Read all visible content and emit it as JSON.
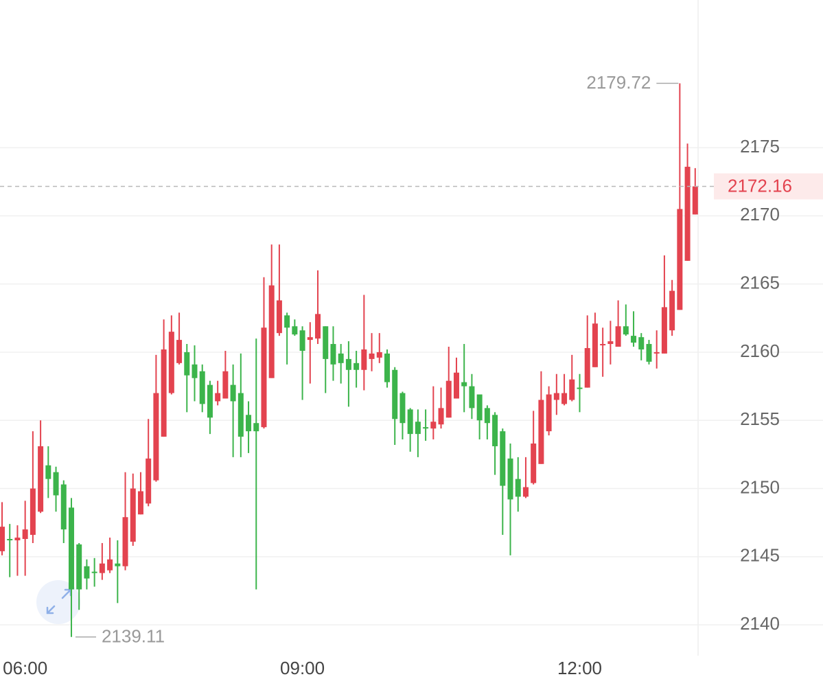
{
  "chart_data": {
    "type": "candlestick",
    "categories": [
      null,
      null,
      null,
      "06:00",
      null,
      null,
      null,
      null,
      null,
      null,
      null,
      null,
      null,
      null,
      null,
      null,
      null,
      null,
      null,
      null,
      null,
      null,
      null,
      null,
      null,
      null,
      null,
      null,
      null,
      null,
      null,
      null,
      null,
      null,
      null,
      null,
      null,
      null,
      null,
      "09:00",
      null,
      null,
      null,
      null,
      null,
      null,
      null,
      null,
      null,
      null,
      null,
      null,
      null,
      null,
      null,
      null,
      null,
      null,
      null,
      null,
      null,
      null,
      null,
      null,
      null,
      null,
      null,
      null,
      null,
      null,
      null,
      null,
      null,
      null,
      null,
      "12:00",
      null,
      null,
      null,
      null,
      null,
      null,
      null,
      null,
      null,
      null,
      null,
      null,
      null,
      null,
      null
    ],
    "open": [
      2145.4,
      2146.3,
      2146.2,
      2146.3,
      2146.6,
      2148.3,
      2151.7,
      2151.2,
      2150.3,
      2148.6,
      2145.9,
      2144.3,
      2143.9,
      2143.8,
      2144.0,
      2144.5,
      2144.3,
      2146.1,
      2148.1,
      2148.9,
      2150.6,
      2153.8,
      2157.0,
      2159.2,
      2160.0,
      2159.1,
      2158.6,
      2157.6,
      2156.4,
      2156.6,
      2157.6,
      2157.0,
      2155.4,
      2154.8,
      2154.5,
      2158.1,
      2161.4,
      2162.7,
      2161.9,
      2161.6,
      2160.9,
      2161.0,
      2161.9,
      2160.6,
      2159.9,
      2159.5,
      2159.2,
      2158.7,
      2159.5,
      2159.6,
      2159.9,
      2158.7,
      2157.0,
      2155.8,
      2154.9,
      2154.5,
      2154.4,
      2154.7,
      2155.2,
      2156.6,
      2157.8,
      2157.5,
      2156.9,
      2155.9,
      2155.4,
      2154.2,
      2152.2,
      2150.7,
      2149.4,
      2150.4,
      2151.8,
      2154.2,
      2156.5,
      2156.2,
      2156.5,
      2157.4,
      2157.4,
      2158.9,
      2160.5,
      2160.6,
      2160.4,
      2161.9,
      2161.2,
      2161.1,
      2160.6,
      2159.9,
      2159.9,
      2161.6,
      2163.1,
      2166.7,
      2170.1
    ],
    "high": [
      2149.0,
      2147.4,
      2147.3,
      2149.1,
      2154.2,
      2155.0,
      2153.1,
      2151.6,
      2150.6,
      2149.3,
      2146.0,
      2144.8,
      2144.9,
      2146.0,
      2146.4,
      2146.2,
      2151.2,
      2151.1,
      2151.2,
      2155.1,
      2159.8,
      2162.4,
      2162.7,
      2162.9,
      2160.6,
      2160.5,
      2159.1,
      2157.9,
      2157.9,
      2160.1,
      2159.1,
      2159.9,
      2156.4,
      2161.0,
      2165.5,
      2167.9,
      2167.9,
      2162.9,
      2162.4,
      2161.9,
      2162.2,
      2166.0,
      2161.9,
      2161.9,
      2160.6,
      2160.8,
      2160.1,
      2164.2,
      2161.4,
      2161.4,
      2160.2,
      2158.9,
      2157.1,
      2155.9,
      2155.8,
      2155.8,
      2157.5,
      2157.4,
      2160.4,
      2159.6,
      2160.6,
      2158.4,
      2156.9,
      2156.1,
      2155.6,
      2154.4,
      2153.3,
      2152.3,
      2152.3,
      2155.7,
      2158.6,
      2157.5,
      2158.4,
      2158.4,
      2159.8,
      2158.4,
      2162.7,
      2162.9,
      2161.8,
      2162.3,
      2163.8,
      2163.5,
      2163.0,
      2161.4,
      2160.9,
      2161.6,
      2167.1,
      2165.3,
      2179.72,
      2175.3,
      2173.5
    ],
    "low": [
      2145.1,
      2143.5,
      2143.6,
      2143.6,
      2146.0,
      2148.2,
      2149.3,
      2148.3,
      2146.0,
      2139.11,
      2141.1,
      2142.6,
      2142.8,
      2143.3,
      2143.8,
      2141.6,
      2144.0,
      2145.8,
      2148.1,
      2148.7,
      2150.5,
      2153.8,
      2156.9,
      2159.1,
      2155.6,
      2156.4,
      2155.6,
      2154.0,
      2156.1,
      2156.6,
      2152.3,
      2152.3,
      2152.6,
      2142.6,
      2154.4,
      2158.1,
      2161.2,
      2159.1,
      2161.2,
      2156.5,
      2157.7,
      2160.6,
      2157.0,
      2157.9,
      2157.7,
      2156.0,
      2157.4,
      2157.2,
      2158.6,
      2159.2,
      2157.4,
      2153.2,
      2153.6,
      2152.7,
      2152.3,
      2153.5,
      2153.6,
      2154.4,
      2155.2,
      2156.6,
      2155.6,
      2155.1,
      2153.6,
      2153.6,
      2151.0,
      2146.6,
      2145.1,
      2148.3,
      2149.3,
      2150.3,
      2151.8,
      2153.9,
      2155.4,
      2156.1,
      2156.4,
      2155.6,
      2157.4,
      2158.9,
      2158.2,
      2159.1,
      2160.4,
      2161.2,
      2160.4,
      2159.4,
      2159.1,
      2158.8,
      2159.9,
      2161.2,
      2163.1,
      2166.7,
      2170.1
    ],
    "close": [
      2147.2,
      2146.2,
      2146.4,
      2147.0,
      2150.0,
      2153.1,
      2150.7,
      2149.5,
      2147.0,
      2142.6,
      2142.6,
      2143.4,
      2143.8,
      2144.5,
      2144.8,
      2144.3,
      2147.9,
      2150.0,
      2149.8,
      2152.2,
      2157.0,
      2160.2,
      2161.5,
      2160.9,
      2158.3,
      2158.1,
      2156.2,
      2155.2,
      2157.0,
      2158.6,
      2156.4,
      2153.8,
      2154.2,
      2154.2,
      2161.8,
      2164.9,
      2163.8,
      2161.8,
      2161.3,
      2160.1,
      2161.1,
      2162.8,
      2159.5,
      2159.1,
      2159.2,
      2158.7,
      2158.7,
      2160.2,
      2159.9,
      2160.0,
      2157.8,
      2155.1,
      2154.8,
      2154.0,
      2154.0,
      2154.4,
      2154.9,
      2155.9,
      2157.9,
      2158.5,
      2157.5,
      2155.9,
      2155.0,
      2154.8,
      2153.1,
      2150.2,
      2149.2,
      2149.4,
      2150.1,
      2153.3,
      2156.5,
      2156.9,
      2157.0,
      2157.0,
      2158.0,
      2157.3,
      2160.3,
      2162.1,
      2160.6,
      2160.8,
      2161.9,
      2161.3,
      2160.7,
      2160.2,
      2159.3,
      2160.0,
      2163.3,
      2164.5,
      2170.5,
      2173.6,
      2172.16
    ],
    "up_color": "#e3434f",
    "down_color": "#3cb44b",
    "ylim": [
      2137.74,
      2185.83
    ],
    "yticks": [
      2140,
      2145,
      2150,
      2155,
      2160,
      2165,
      2170,
      2175
    ],
    "grid": true
  }
}
